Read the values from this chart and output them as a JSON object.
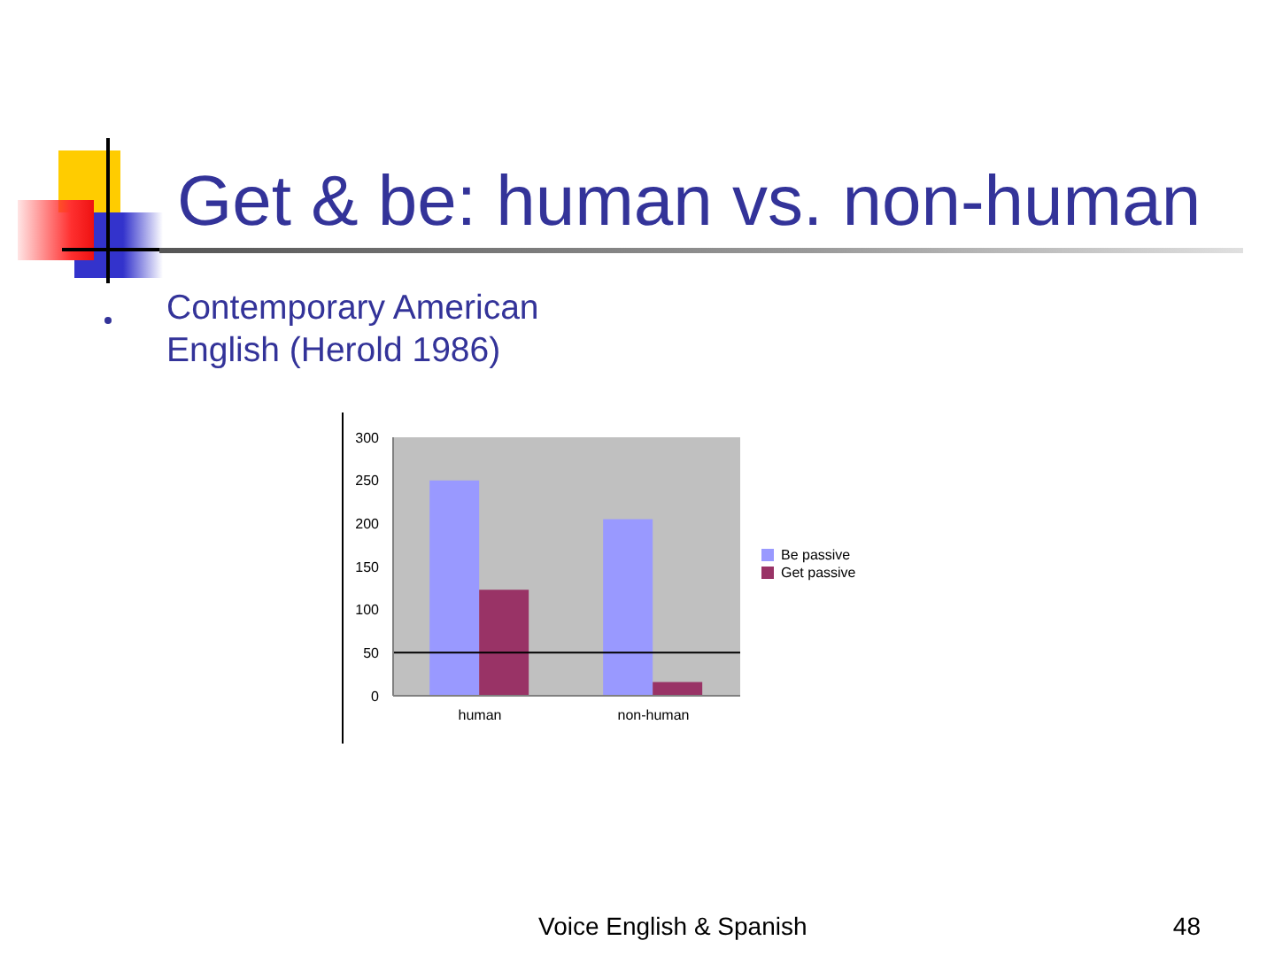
{
  "chart_data": {
    "type": "bar",
    "title": "Get & be: human vs. non-human",
    "subtitle": "Contemporary American English (Herold 1986)",
    "categories": [
      "human",
      "non-human"
    ],
    "series": [
      {
        "name": "Be passive",
        "color": "#9999ff",
        "values": [
          250,
          205
        ]
      },
      {
        "name": "Get passive",
        "color": "#993366",
        "values": [
          123,
          16
        ]
      }
    ],
    "ylim": [
      0,
      300
    ],
    "yticks": [
      0,
      50,
      100,
      150,
      200,
      250,
      300
    ],
    "grid": false,
    "legend": "right",
    "ref_lines": [
      {
        "axis": "y",
        "value": 50,
        "color": "#000000"
      }
    ],
    "annotations": [
      "Voice English & Spanish",
      "48"
    ]
  }
}
